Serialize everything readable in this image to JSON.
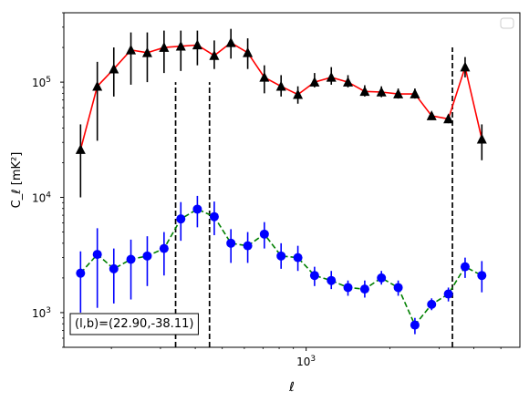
{
  "chart_data": {
    "type": "scatter",
    "xscale": "log",
    "yscale": "log",
    "xlim": [
      135,
      5850
    ],
    "ylim": [
      500,
      400000
    ],
    "xlabel": "ℓ",
    "ylabel": "C_ℓ  [mK²]",
    "x_ticks": [
      {
        "value": 1000,
        "label": "10",
        "exp": "3"
      }
    ],
    "y_ticks": [
      {
        "value": 1000,
        "label": "10",
        "exp": "3"
      },
      {
        "value": 10000,
        "label": "10",
        "exp": "4"
      },
      {
        "value": 100000,
        "label": "10",
        "exp": "5"
      }
    ],
    "legend": {
      "position": "upper-right",
      "entries": []
    },
    "annotation": "(l,b)=(22.90,-38.11)",
    "annotation_position": "lower-left",
    "vlines": [
      {
        "x": 340,
        "ymin": 500,
        "ymax": 100000,
        "style": "dashed",
        "color": "#000000"
      },
      {
        "x": 450,
        "ymin": 500,
        "ymax": 100000,
        "style": "dashed",
        "color": "#000000"
      },
      {
        "x": 3350,
        "ymin": 500,
        "ymax": 200000,
        "style": "dashed",
        "color": "#000000"
      }
    ],
    "series": [
      {
        "marker": "triangle",
        "line_color": "#ff0000",
        "marker_color": "#000000",
        "errorbar_color": "#000000",
        "line_style": "solid",
        "points": [
          {
            "x": 155,
            "y": 26000,
            "ylo": 10000,
            "yhi": 43000
          },
          {
            "x": 178,
            "y": 92000,
            "ylo": 31000,
            "yhi": 150000
          },
          {
            "x": 204,
            "y": 130000,
            "ylo": 75000,
            "yhi": 200000
          },
          {
            "x": 235,
            "y": 190000,
            "ylo": 95000,
            "yhi": 270000
          },
          {
            "x": 269,
            "y": 180000,
            "ylo": 100000,
            "yhi": 270000
          },
          {
            "x": 309,
            "y": 200000,
            "ylo": 120000,
            "yhi": 280000
          },
          {
            "x": 355,
            "y": 205000,
            "ylo": 125000,
            "yhi": 280000
          },
          {
            "x": 407,
            "y": 210000,
            "ylo": 140000,
            "yhi": 280000
          },
          {
            "x": 468,
            "y": 170000,
            "ylo": 130000,
            "yhi": 230000
          },
          {
            "x": 537,
            "y": 220000,
            "ylo": 160000,
            "yhi": 290000
          },
          {
            "x": 617,
            "y": 180000,
            "ylo": 130000,
            "yhi": 240000
          },
          {
            "x": 708,
            "y": 110000,
            "ylo": 80000,
            "yhi": 140000
          },
          {
            "x": 813,
            "y": 92000,
            "ylo": 75000,
            "yhi": 115000
          },
          {
            "x": 934,
            "y": 78000,
            "ylo": 65000,
            "yhi": 92000
          },
          {
            "x": 1072,
            "y": 100000,
            "ylo": 90000,
            "yhi": 120000
          },
          {
            "x": 1231,
            "y": 110000,
            "ylo": 95000,
            "yhi": 135000
          },
          {
            "x": 1413,
            "y": 100000,
            "ylo": 90000,
            "yhi": 115000
          },
          {
            "x": 1623,
            "y": 83000,
            "ylo": 75000,
            "yhi": 94000
          },
          {
            "x": 1863,
            "y": 82000,
            "ylo": 74000,
            "yhi": 92000
          },
          {
            "x": 2140,
            "y": 79000,
            "ylo": 72000,
            "yhi": 88000
          },
          {
            "x": 2457,
            "y": 79000,
            "ylo": 72000,
            "yhi": 88000
          },
          {
            "x": 2821,
            "y": 51000,
            "ylo": 47000,
            "yhi": 55000
          },
          {
            "x": 3240,
            "y": 48000,
            "ylo": 44000,
            "yhi": 52000
          },
          {
            "x": 3720,
            "y": 135000,
            "ylo": 110000,
            "yhi": 165000
          },
          {
            "x": 4272,
            "y": 32000,
            "ylo": 21000,
            "yhi": 43000
          }
        ]
      },
      {
        "marker": "circle",
        "line_color": "#008000",
        "marker_color": "#0000ff",
        "errorbar_color": "#0000ff",
        "line_style": "dashed",
        "points": [
          {
            "x": 155,
            "y": 2200,
            "ylo": 1000,
            "yhi": 3400
          },
          {
            "x": 178,
            "y": 3200,
            "ylo": 1100,
            "yhi": 5400
          },
          {
            "x": 204,
            "y": 2400,
            "ylo": 1200,
            "yhi": 3600
          },
          {
            "x": 235,
            "y": 2900,
            "ylo": 1300,
            "yhi": 4300
          },
          {
            "x": 269,
            "y": 3100,
            "ylo": 1700,
            "yhi": 4600
          },
          {
            "x": 309,
            "y": 3600,
            "ylo": 2100,
            "yhi": 5000
          },
          {
            "x": 355,
            "y": 6500,
            "ylo": 4200,
            "yhi": 9100
          },
          {
            "x": 407,
            "y": 7900,
            "ylo": 5500,
            "yhi": 10300
          },
          {
            "x": 468,
            "y": 6800,
            "ylo": 4700,
            "yhi": 9200
          },
          {
            "x": 537,
            "y": 4000,
            "ylo": 2700,
            "yhi": 5300
          },
          {
            "x": 617,
            "y": 3800,
            "ylo": 2700,
            "yhi": 5000
          },
          {
            "x": 708,
            "y": 4800,
            "ylo": 3600,
            "yhi": 6100
          },
          {
            "x": 813,
            "y": 3100,
            "ylo": 2400,
            "yhi": 4000
          },
          {
            "x": 934,
            "y": 3000,
            "ylo": 2300,
            "yhi": 3800
          },
          {
            "x": 1072,
            "y": 2100,
            "ylo": 1700,
            "yhi": 2500
          },
          {
            "x": 1231,
            "y": 1900,
            "ylo": 1600,
            "yhi": 2300
          },
          {
            "x": 1413,
            "y": 1650,
            "ylo": 1400,
            "yhi": 1900
          },
          {
            "x": 1623,
            "y": 1600,
            "ylo": 1350,
            "yhi": 1900
          },
          {
            "x": 1863,
            "y": 2000,
            "ylo": 1750,
            "yhi": 2300
          },
          {
            "x": 2140,
            "y": 1650,
            "ylo": 1400,
            "yhi": 1900
          },
          {
            "x": 2457,
            "y": 780,
            "ylo": 650,
            "yhi": 900
          },
          {
            "x": 2821,
            "y": 1180,
            "ylo": 1050,
            "yhi": 1330
          },
          {
            "x": 3240,
            "y": 1450,
            "ylo": 1250,
            "yhi": 1650
          },
          {
            "x": 3720,
            "y": 2500,
            "ylo": 2000,
            "yhi": 3000
          },
          {
            "x": 4272,
            "y": 2100,
            "ylo": 1500,
            "yhi": 2800
          }
        ]
      }
    ]
  }
}
